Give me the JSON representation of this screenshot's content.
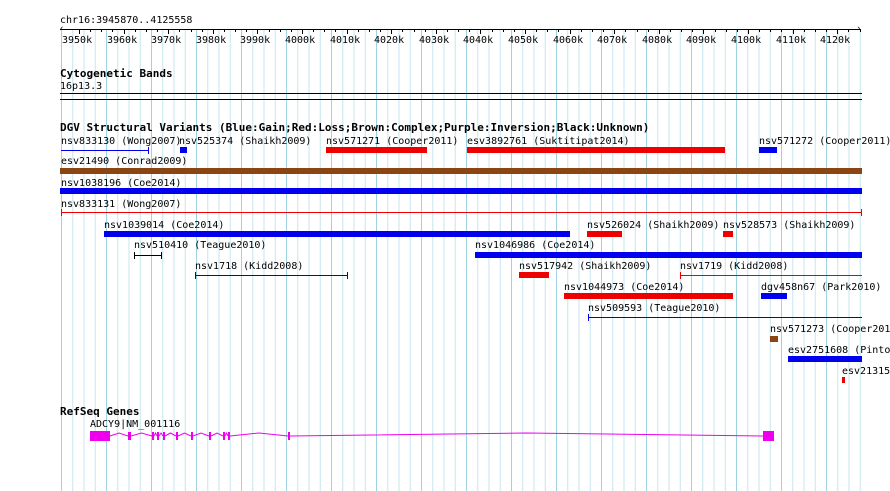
{
  "colors": {
    "gain": "#0000ee",
    "loss": "#ee0000",
    "complex": "#8b4513",
    "unknown": "#000000",
    "gene": "#ee00ee",
    "grid": "#c8e6f0"
  },
  "ruler": {
    "position": "chr16:3945870..4125558",
    "ticks": [
      "3950k",
      "3960k",
      "3970k",
      "3980k",
      "3990k",
      "4000k",
      "4010k",
      "4020k",
      "4030k",
      "4040k",
      "4050k",
      "4060k",
      "4070k",
      "4080k",
      "4090k",
      "4100k",
      "4110k",
      "4120k"
    ]
  },
  "cytoband": {
    "title": "Cytogenetic Bands",
    "band": "16p13.3"
  },
  "dgv": {
    "title": "DGV Structural Variants (Blue:Gain;Red:Loss;Brown:Complex;Purple:Inversion;Black:Unknown)",
    "labels": [
      "nsv833130 (Wong2007)",
      "nsv525374 (Shaikh2009)",
      "nsv571271 (Cooper2011)",
      "esv3892761 (Suktitipat2014)",
      "nsv571272 (Cooper2011)",
      "esv21490 (Conrad2009)",
      "nsv1038196 (Coe2014)",
      "nsv833131 (Wong2007)",
      "nsv1039014 (Coe2014)",
      "nsv526024 (Shaikh2009)",
      "nsv528573 (Shaikh2009)",
      "nsv510410 (Teague2010)",
      "nsv1046986 (Coe2014)",
      "nsv1718 (Kidd2008)",
      "nsv517942 (Shaikh2009)",
      "nsv1719 (Kidd2008)",
      "nsv1044973 (Coe2014)",
      "dgv458n67 (Park2010)",
      "nsv509593 (Teague2010)",
      "nsv571273 (Cooper201",
      "esv2751608 (Pinto",
      "esv21315"
    ]
  },
  "refseq": {
    "title": "RefSeq Genes",
    "gene_label": "ADCY9|NM_001116"
  }
}
